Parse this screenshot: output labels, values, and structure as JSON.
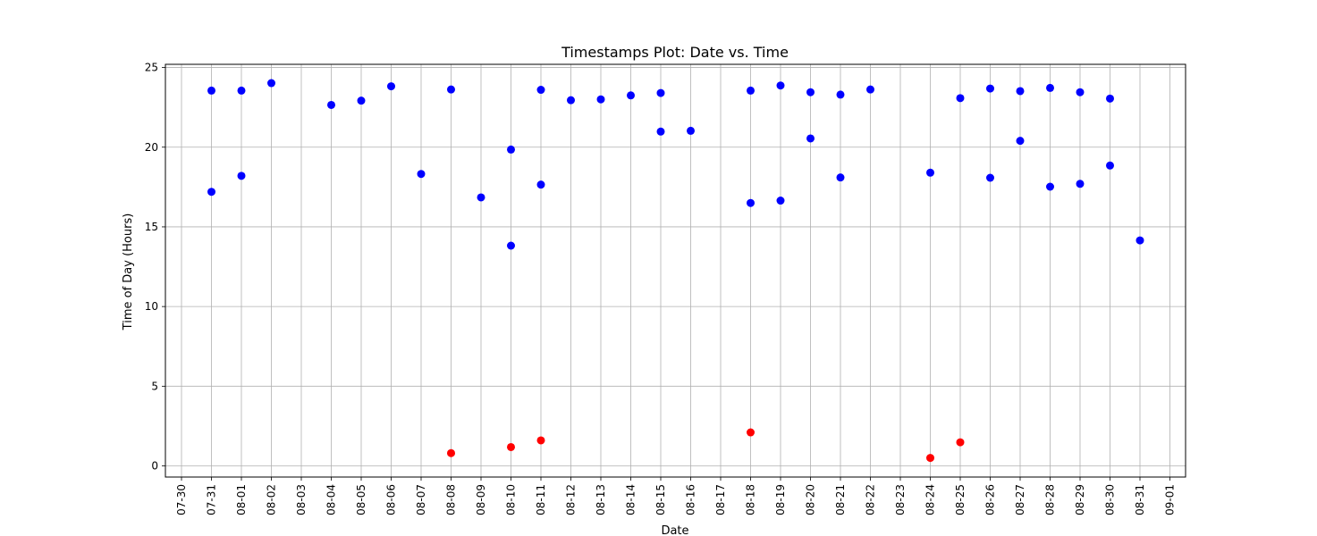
{
  "chart_data": {
    "type": "scatter",
    "title": "Timestamps Plot: Date vs. Time",
    "xlabel": "Date",
    "ylabel": "Time of Day (Hours)",
    "x_ticks": [
      "07-30",
      "07-31",
      "08-01",
      "08-02",
      "08-03",
      "08-04",
      "08-05",
      "08-06",
      "08-07",
      "08-08",
      "08-09",
      "08-10",
      "08-11",
      "08-12",
      "08-13",
      "08-14",
      "08-15",
      "08-16",
      "08-17",
      "08-18",
      "08-19",
      "08-20",
      "08-21",
      "08-22",
      "08-23",
      "08-24",
      "08-25",
      "08-26",
      "08-27",
      "08-28",
      "08-29",
      "08-30",
      "08-31",
      "09-01"
    ],
    "y_ticks": [
      0,
      5,
      10,
      15,
      20,
      25
    ],
    "xlim": [
      "07-29.6",
      "09-01.6"
    ],
    "ylim": [
      -0.7,
      25.2
    ],
    "grid": true,
    "colors": {
      "day": "#0000ff",
      "night": "#ff0000",
      "grid": "#b0b0b0"
    },
    "series": [
      {
        "color_key": "day",
        "points": [
          [
            "07-31",
            23.55
          ],
          [
            "07-31",
            17.2
          ],
          [
            "08-01",
            23.55
          ],
          [
            "08-01",
            18.2
          ],
          [
            "08-02",
            24.02
          ],
          [
            "08-04",
            22.65
          ],
          [
            "08-05",
            22.92
          ],
          [
            "08-06",
            23.82
          ],
          [
            "08-07",
            18.32
          ],
          [
            "08-08",
            23.62
          ],
          [
            "08-09",
            16.85
          ],
          [
            "08-10",
            19.85
          ],
          [
            "08-10",
            13.82
          ],
          [
            "08-11",
            23.6
          ],
          [
            "08-11",
            17.65
          ],
          [
            "08-12",
            22.95
          ],
          [
            "08-13",
            23.0
          ],
          [
            "08-14",
            23.25
          ],
          [
            "08-15",
            23.4
          ],
          [
            "08-15",
            20.98
          ],
          [
            "08-16",
            21.03
          ],
          [
            "08-18",
            23.55
          ],
          [
            "08-18",
            16.5
          ],
          [
            "08-19",
            23.87
          ],
          [
            "08-19",
            16.65
          ],
          [
            "08-20",
            23.45
          ],
          [
            "08-20",
            20.55
          ],
          [
            "08-21",
            23.3
          ],
          [
            "08-21",
            18.1
          ],
          [
            "08-22",
            23.62
          ],
          [
            "08-24",
            18.4
          ],
          [
            "08-25",
            23.08
          ],
          [
            "08-26",
            23.68
          ],
          [
            "08-26",
            18.08
          ],
          [
            "08-27",
            23.52
          ],
          [
            "08-27",
            20.4
          ],
          [
            "08-28",
            23.72
          ],
          [
            "08-28",
            17.52
          ],
          [
            "08-29",
            23.45
          ],
          [
            "08-29",
            17.7
          ],
          [
            "08-30",
            23.05
          ],
          [
            "08-30",
            18.85
          ],
          [
            "08-31",
            14.15
          ]
        ]
      },
      {
        "color_key": "night",
        "points": [
          [
            "08-08",
            0.8
          ],
          [
            "08-10",
            1.18
          ],
          [
            "08-11",
            1.6
          ],
          [
            "08-18",
            2.1
          ],
          [
            "08-24",
            0.5
          ],
          [
            "08-25",
            1.48
          ]
        ]
      }
    ]
  }
}
